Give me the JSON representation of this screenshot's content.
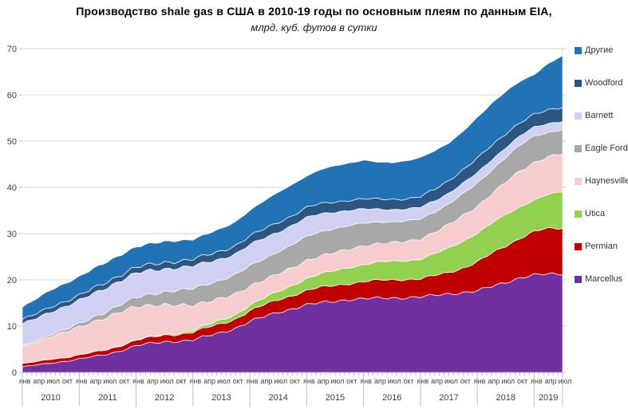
{
  "title": "Производство  shale gas в США в 2010-19 годы по основным  плеям по данным EIA,",
  "subtitle": "млрд. куб. футов в сутки",
  "chart_data": {
    "type": "area",
    "stacked": true,
    "title": "Производство  shale gas в США в 2010-19 годы по основным  плеям по данным EIA,",
    "subtitle": "млрд. куб. футов в сутки",
    "unit": "млрд. куб. футов в сутки",
    "ylim": [
      0,
      70
    ],
    "y_ticks": [
      0,
      10,
      20,
      30,
      40,
      50,
      60,
      70
    ],
    "grid": true,
    "legend_position": "right",
    "years": [
      "2010",
      "2011",
      "2012",
      "2013",
      "2014",
      "2015",
      "2016",
      "2017",
      "2018",
      "2019"
    ],
    "x_labels": [
      "янв",
      "апр",
      "июл",
      "окт",
      "янв",
      "апр",
      "июл",
      "окт",
      "янв",
      "апр",
      "июл",
      "окт",
      "янв",
      "апр",
      "июл",
      "окт",
      "янв",
      "апр",
      "июл",
      "окт",
      "янв",
      "апр",
      "июл",
      "окт",
      "янв",
      "апр",
      "июл",
      "окт",
      "янв",
      "апр",
      "июл",
      "окт",
      "янв",
      "апр",
      "июл",
      "окт",
      "янв",
      "апр",
      "июл"
    ],
    "series_note": "values in Bcf/d at each quarterly x label, stacked bottom-to-top",
    "series": [
      {
        "name": "Marcellus",
        "color": "#7030A0",
        "values": [
          1.2,
          1.6,
          2.0,
          2.4,
          2.9,
          3.4,
          3.9,
          4.8,
          5.8,
          6.2,
          6.6,
          6.8,
          7.0,
          7.8,
          8.6,
          9.6,
          11.0,
          12.0,
          13.0,
          13.8,
          14.6,
          15.0,
          15.4,
          15.8,
          15.9,
          16.0,
          16.1,
          16.2,
          16.3,
          16.6,
          17.0,
          17.3,
          17.6,
          18.5,
          19.5,
          20.5,
          21.0,
          21.2,
          21.3
        ]
      },
      {
        "name": "Permian",
        "color": "#C00000",
        "values": [
          0.7,
          0.7,
          0.8,
          0.8,
          0.9,
          0.9,
          1.0,
          1.1,
          1.2,
          1.3,
          1.4,
          1.5,
          1.7,
          1.8,
          1.9,
          2.0,
          2.3,
          2.5,
          2.7,
          2.9,
          3.1,
          3.3,
          3.4,
          3.5,
          3.7,
          3.8,
          3.9,
          4.0,
          3.9,
          4.2,
          4.6,
          5.4,
          6.3,
          7.0,
          7.8,
          8.7,
          9.5,
          9.7,
          9.8
        ]
      },
      {
        "name": "Utica",
        "color": "#92D050",
        "values": [
          0,
          0,
          0,
          0,
          0,
          0,
          0.05,
          0.1,
          0.1,
          0.15,
          0.2,
          0.3,
          0.4,
          0.6,
          0.8,
          1.0,
          1.2,
          1.5,
          1.8,
          2.2,
          2.6,
          2.9,
          3.2,
          3.5,
          3.7,
          3.9,
          4.0,
          4.1,
          4.3,
          4.7,
          5.2,
          5.8,
          6.3,
          6.5,
          6.7,
          6.8,
          6.9,
          7.4,
          7.8
        ]
      },
      {
        "name": "Haynesville",
        "color": "#F7CCCE",
        "values": [
          3.6,
          4.3,
          5.0,
          5.5,
          6.0,
          6.6,
          7.0,
          7.2,
          7.1,
          6.8,
          6.4,
          6.0,
          5.4,
          5.0,
          4.7,
          4.4,
          4.1,
          3.9,
          3.8,
          3.8,
          3.9,
          3.9,
          3.9,
          3.9,
          4.1,
          4.0,
          4.0,
          4.1,
          4.4,
          4.7,
          5.1,
          5.5,
          5.8,
          6.4,
          7.0,
          7.6,
          8.1,
          8.2,
          8.3
        ]
      },
      {
        "name": "Eagle Ford",
        "color": "#A8A8A8",
        "values": [
          0.2,
          0.3,
          0.4,
          0.5,
          0.7,
          1.0,
          1.3,
          1.6,
          2.0,
          2.4,
          2.8,
          3.2,
          3.6,
          3.8,
          4.0,
          4.2,
          4.4,
          4.6,
          4.8,
          5.0,
          5.2,
          5.3,
          5.2,
          5.1,
          4.9,
          4.7,
          4.5,
          4.4,
          4.3,
          4.4,
          4.5,
          4.7,
          5.0,
          5.2,
          5.4,
          5.6,
          5.7,
          5.3,
          5.2
        ]
      },
      {
        "name": "Barnett",
        "color": "#CFD0F2",
        "values": [
          4.7,
          4.8,
          4.9,
          5.0,
          5.0,
          5.1,
          5.2,
          5.2,
          5.2,
          5.1,
          5.0,
          4.9,
          4.8,
          4.7,
          4.6,
          4.5,
          4.5,
          4.4,
          4.3,
          4.2,
          4.0,
          3.8,
          3.6,
          3.3,
          3.0,
          2.8,
          2.7,
          2.6,
          2.5,
          2.4,
          2.3,
          2.3,
          2.2,
          2.2,
          2.1,
          2.0,
          1.9,
          1.9,
          1.8
        ]
      },
      {
        "name": "Woodford",
        "color": "#2C5784",
        "values": [
          1.0,
          1.0,
          1.1,
          1.1,
          1.1,
          1.2,
          1.2,
          1.2,
          1.3,
          1.3,
          1.4,
          1.4,
          1.5,
          1.6,
          1.7,
          1.8,
          1.9,
          2.0,
          2.1,
          2.1,
          2.2,
          2.2,
          2.2,
          2.2,
          2.2,
          2.2,
          2.2,
          2.2,
          2.3,
          2.5,
          2.7,
          2.9,
          3.2,
          3.1,
          3.0,
          2.9,
          2.8,
          2.9,
          3.0
        ]
      },
      {
        "name": "Другие",
        "color": "#2173B5",
        "values": [
          2.7,
          3.2,
          3.6,
          3.9,
          4.1,
          4.2,
          4.3,
          4.4,
          4.4,
          4.5,
          4.5,
          4.5,
          4.3,
          4.5,
          4.8,
          5.2,
          5.6,
          6.0,
          6.4,
          6.8,
          6.9,
          7.3,
          7.7,
          8.1,
          8.5,
          7.9,
          7.8,
          8.3,
          8.6,
          8.2,
          8.0,
          8.4,
          8.9,
          9.0,
          9.0,
          9.0,
          8.7,
          10.0,
          11.0
        ]
      }
    ],
    "legend_order_top_to_bottom": [
      "Другие",
      "Woodford",
      "Barnett",
      "Eagle Ford",
      "Haynesville",
      "Utica",
      "Permian",
      "Marcellus"
    ],
    "colors": {
      "grid": "#D9D9D9",
      "axis": "#A6A6A6",
      "tick": "#BFBFBF",
      "axis_text": "#404040"
    }
  }
}
